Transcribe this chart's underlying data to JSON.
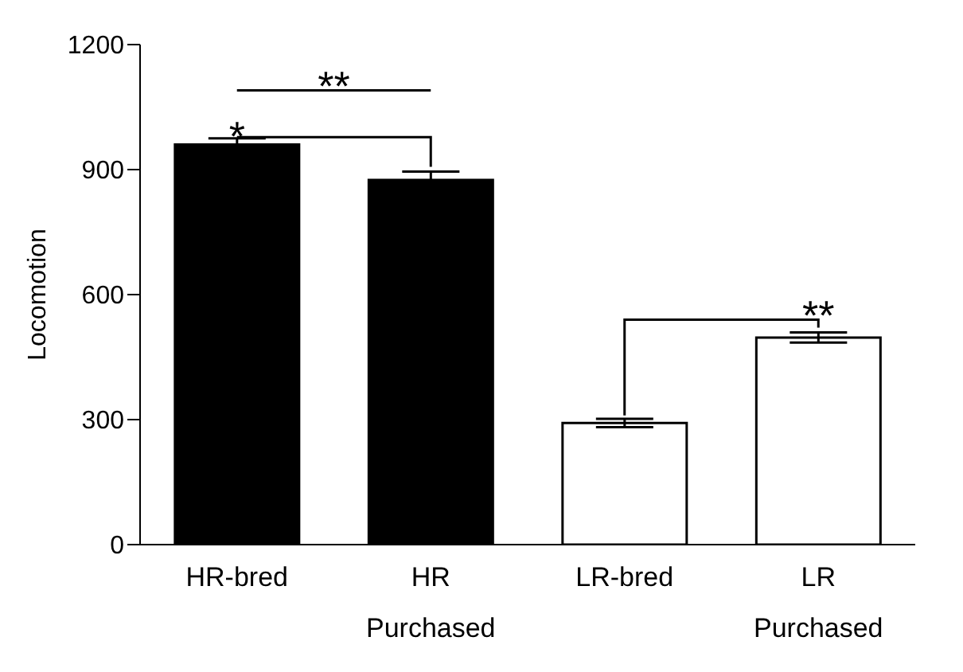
{
  "chart_data": {
    "type": "bar",
    "ylabel": "Locomotion",
    "categories": [
      "HR-bred",
      "HR Purchased",
      "LR-bred",
      "LR Purchased"
    ],
    "values": [
      960,
      875,
      292,
      497
    ],
    "errors": [
      15,
      20,
      10,
      12
    ],
    "colors": [
      "#000000",
      "#000000",
      "#ffffff",
      "#ffffff"
    ],
    "ylim": [
      0,
      1200
    ],
    "yticks": [
      0,
      300,
      600,
      900,
      1200
    ],
    "annotations": [
      {
        "text": "*",
        "x": "HR Purchased",
        "y": 895
      },
      "**",
      {
        "text": "**",
        "x": "LR Purchased",
        "y": 509
      }
    ]
  }
}
